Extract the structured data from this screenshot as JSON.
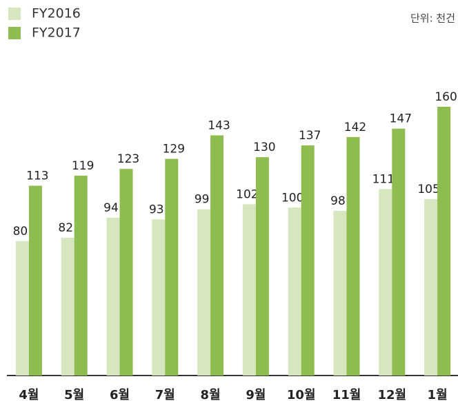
{
  "chart_data": {
    "type": "bar",
    "unit_label": "단위: 천건",
    "categories": [
      "4월",
      "5월",
      "6월",
      "7월",
      "8월",
      "9월",
      "10월",
      "11월",
      "12월",
      "1월"
    ],
    "series": [
      {
        "name": "FY2016",
        "color": "#d6e6be",
        "values": [
          80,
          82,
          94,
          93,
          99,
          102,
          100,
          98,
          111,
          105
        ]
      },
      {
        "name": "FY2017",
        "color": "#8fbc50",
        "values": [
          113,
          119,
          123,
          129,
          143,
          130,
          137,
          142,
          147,
          160
        ]
      }
    ],
    "ylim": [
      0,
      160
    ],
    "legend": "top-left"
  }
}
